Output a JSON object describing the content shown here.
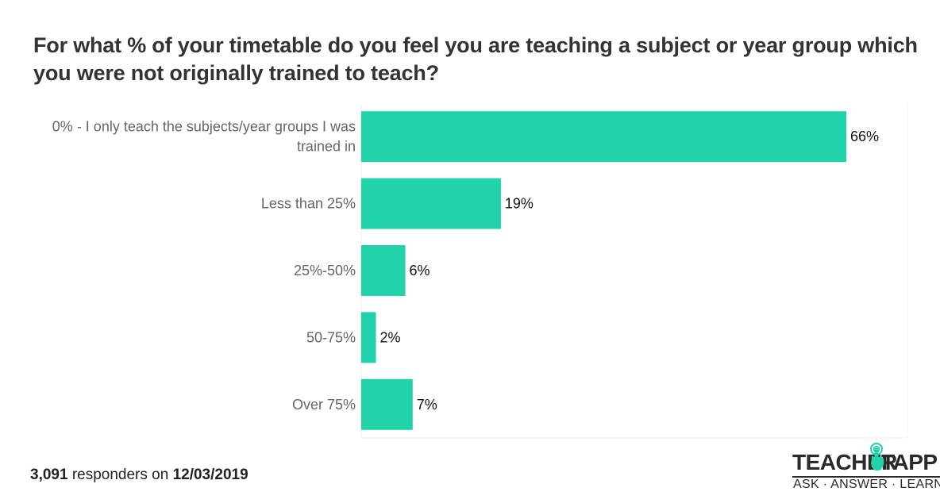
{
  "chart_data": {
    "type": "bar",
    "orientation": "horizontal",
    "title": "For what % of your timetable do you feel you are teaching a subject or year group which you were not originally trained to teach?",
    "categories": [
      "0% - I only teach the subjects/year groups I was trained in",
      "Less than 25%",
      "25%-50%",
      "50-75%",
      "Over 75%"
    ],
    "values": [
      66,
      19,
      6,
      2,
      7
    ],
    "value_labels": [
      "66%",
      "19%",
      "6%",
      "2%",
      "7%"
    ],
    "unit": "%",
    "xlim": [
      0,
      74
    ],
    "grid": false,
    "bar_color": "#21D3A8",
    "legend": "none"
  },
  "footer": {
    "responders_count": "3,091",
    "responders_text": " responders on ",
    "date": "12/03/2019"
  },
  "logo": {
    "word1": "TEACHER",
    "word2": "TAPP",
    "tagline": "ASK · ANSWER · LEARN",
    "icon": "pointing-hand-icon",
    "accent_color": "#21D3A8"
  }
}
